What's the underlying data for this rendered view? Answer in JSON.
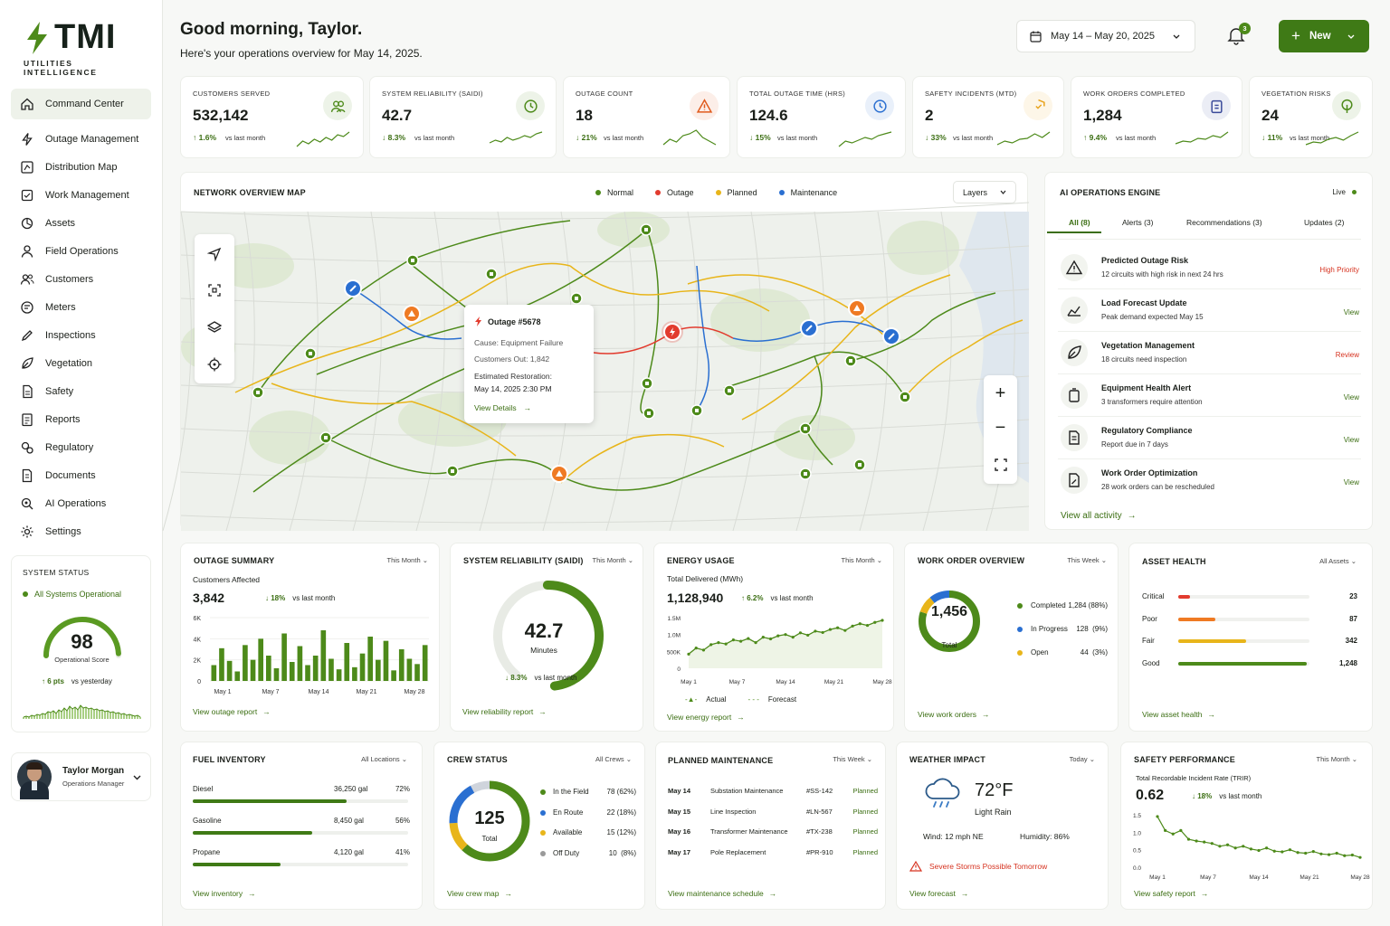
{
  "brand": {
    "name": "TMI",
    "tagline": "UTILITIES INTELLIGENCE"
  },
  "sidebar": {
    "items": [
      {
        "label": "Command Center",
        "icon": "home-icon"
      },
      {
        "label": "Outage Management",
        "icon": "zap-icon"
      },
      {
        "label": "Distribution Map",
        "icon": "map-icon"
      },
      {
        "label": "Work Management",
        "icon": "clipboard-icon"
      },
      {
        "label": "Assets",
        "icon": "assets-icon"
      },
      {
        "label": "Field Operations",
        "icon": "user-icon"
      },
      {
        "label": "Customers",
        "icon": "users-icon"
      },
      {
        "label": "Meters",
        "icon": "meter-icon"
      },
      {
        "label": "Inspections",
        "icon": "pen-icon"
      },
      {
        "label": "Vegetation",
        "icon": "leaf-icon"
      },
      {
        "label": "Safety",
        "icon": "doc-icon"
      },
      {
        "label": "Reports",
        "icon": "report-icon"
      },
      {
        "label": "Regulatory",
        "icon": "regulatory-icon"
      },
      {
        "label": "Documents",
        "icon": "document-icon"
      },
      {
        "label": "AI Operations",
        "icon": "ai-icon"
      },
      {
        "label": "Settings",
        "icon": "gear-icon"
      }
    ],
    "system_status": {
      "title": "SYSTEM STATUS",
      "state": "All Systems Operational",
      "score": "98",
      "score_label": "Operational Score",
      "change": "6 pts",
      "change_label": "vs yesterday"
    },
    "user": {
      "name": "Taylor Morgan",
      "role": "Operations Manager"
    }
  },
  "header": {
    "greeting": "Good morning, Taylor.",
    "subtitle": "Here's your operations overview for May 14, 2025.",
    "date_range": "May 14 – May 20, 2025",
    "notifications": "3",
    "new_button": "New"
  },
  "kpis": [
    {
      "label": "CUSTOMERS SERVED",
      "value": "532,142",
      "change": "1.6%",
      "dir": "up",
      "vs": "vs last month",
      "icon": "users-icon",
      "icon_color": "#4d8a1a"
    },
    {
      "label": "SYSTEM RELIABILITY (SAIDI)",
      "value": "42.7",
      "change": "8.3%",
      "dir": "down",
      "vs": "vs last month",
      "icon": "clock-icon",
      "icon_color": "#4d8a1a"
    },
    {
      "label": "OUTAGE COUNT",
      "value": "18",
      "change": "21%",
      "dir": "down",
      "vs": "vs last month",
      "icon": "warning-icon",
      "icon_color": "#e05a1c"
    },
    {
      "label": "TOTAL OUTAGE TIME (HRS)",
      "value": "124.6",
      "change": "15%",
      "dir": "down",
      "vs": "vs last month",
      "icon": "clock-icon",
      "icon_color": "#2a6fd1"
    },
    {
      "label": "SAFETY INCIDENTS (MTD)",
      "value": "2",
      "change": "33%",
      "dir": "down",
      "vs": "vs last month",
      "icon": "shield-icon",
      "icon_color": "#e8a21a"
    },
    {
      "label": "WORK ORDERS COMPLETED",
      "value": "1,284",
      "change": "9.4%",
      "dir": "up",
      "vs": "vs last month",
      "icon": "clipboard-icon",
      "icon_color": "#3a4a9a"
    },
    {
      "label": "VEGETATION RISKS",
      "value": "24",
      "change": "11%",
      "dir": "down",
      "vs": "vs last month",
      "icon": "tree-icon",
      "icon_color": "#4d8a1a"
    }
  ],
  "map": {
    "title": "NETWORK OVERVIEW MAP",
    "legend": [
      {
        "label": "Normal",
        "color": "#4d8a1a"
      },
      {
        "label": "Outage",
        "color": "#e23b2e"
      },
      {
        "label": "Planned",
        "color": "#e8b51a"
      },
      {
        "label": "Maintenance",
        "color": "#2a6fd1"
      }
    ],
    "layers_label": "Layers",
    "popup": {
      "title": "Outage #5678",
      "cause": "Cause: Equipment Failure",
      "customers": "Customers Out: 1,842",
      "restore_label": "Estimated Restoration:",
      "restore_time": "May 14, 2025 2:30 PM",
      "link": "View Details"
    }
  },
  "ai_engine": {
    "title": "AI OPERATIONS ENGINE",
    "live": "Live",
    "tabs": [
      "All (8)",
      "Alerts (3)",
      "Recommendations (3)",
      "Updates (2)"
    ],
    "items": [
      {
        "title": "Predicted Outage Risk",
        "desc": "12 circuits with high risk in next 24 hrs",
        "action": "High Priority",
        "color": "#d6321f",
        "icon": "warning-icon"
      },
      {
        "title": "Load Forecast Update",
        "desc": "Peak demand expected May 15",
        "action": "View",
        "color": "#3b6e12",
        "icon": "chart-icon"
      },
      {
        "title": "Vegetation Management",
        "desc": "18 circuits need inspection",
        "action": "Review",
        "color": "#d6321f",
        "icon": "leaf-icon"
      },
      {
        "title": "Equipment Health Alert",
        "desc": "3 transformers require attention",
        "action": "View",
        "color": "#3b6e12",
        "icon": "battery-icon"
      },
      {
        "title": "Regulatory Compliance",
        "desc": "Report due in 7 days",
        "action": "View",
        "color": "#3b6e12",
        "icon": "document-icon"
      },
      {
        "title": "Work Order Optimization",
        "desc": "28 work orders can be rescheduled",
        "action": "View",
        "color": "#3b6e12",
        "icon": "doc-edit-icon"
      }
    ],
    "link": "View all activity"
  },
  "outage_summary": {
    "title": "OUTAGE SUMMARY",
    "period": "This Month",
    "label": "Customers Affected",
    "value": "3,842",
    "change": "18%",
    "vs": "vs last month",
    "link": "View outage report"
  },
  "reliability": {
    "title": "SYSTEM RELIABILITY (SAIDI)",
    "period": "This Month",
    "value": "42.7",
    "unit": "Minutes",
    "gauge_fraction": 0.62,
    "change": "8.3%",
    "vs": "vs last month",
    "link": "View reliability report"
  },
  "energy": {
    "title": "ENERGY USAGE",
    "period": "This Month",
    "label": "Total Delivered (MWh)",
    "value": "1,128,940",
    "change": "6.2%",
    "vs": "vs last month",
    "legend_actual": "Actual",
    "legend_forecast": "Forecast",
    "link": "View energy report"
  },
  "work_orders": {
    "title": "WORK ORDER OVERVIEW",
    "period": "This Week",
    "total": "1,456",
    "total_label": "Total",
    "rows": [
      {
        "label": "Completed",
        "value": "1,284 (88%)",
        "color": "#4d8a1a"
      },
      {
        "label": "In Progress",
        "value": "128  (9%)",
        "color": "#2a6fd1"
      },
      {
        "label": "Open",
        "value": "44  (3%)",
        "color": "#e8b51a"
      }
    ],
    "link": "View work orders"
  },
  "asset_health": {
    "title": "ASSET HEALTH",
    "period": "All Assets",
    "rows": [
      {
        "label": "Critical",
        "value": "23",
        "color": "#e23b2e",
        "fraction": 0.09
      },
      {
        "label": "Poor",
        "value": "87",
        "color": "#ef7a23",
        "fraction": 0.28
      },
      {
        "label": "Fair",
        "value": "342",
        "color": "#e8b51a",
        "fraction": 0.52
      },
      {
        "label": "Good",
        "value": "1,248",
        "color": "#4d8a1a",
        "fraction": 0.98
      }
    ],
    "link": "View asset health"
  },
  "fuel": {
    "title": "FUEL INVENTORY",
    "period": "All Locations",
    "rows": [
      {
        "label": "Diesel",
        "amount": "36,250 gal",
        "pct": "72%",
        "fraction": 0.72
      },
      {
        "label": "Gasoline",
        "amount": "8,450 gal",
        "pct": "56%",
        "fraction": 0.56
      },
      {
        "label": "Propane",
        "amount": "4,120 gal",
        "pct": "41%",
        "fraction": 0.41
      }
    ],
    "link": "View inventory"
  },
  "crew": {
    "title": "CREW STATUS",
    "period": "All Crews",
    "total": "125",
    "total_label": "Total",
    "rows": [
      {
        "label": "In the Field",
        "value": "78 (62%)",
        "color": "#4d8a1a"
      },
      {
        "label": "En Route",
        "value": "22 (18%)",
        "color": "#2a6fd1"
      },
      {
        "label": "Available",
        "value": "15 (12%)",
        "color": "#e8b51a"
      },
      {
        "label": "Off Duty",
        "value": "10  (8%)",
        "color": "#9a9a9a"
      }
    ],
    "link": "View crew map"
  },
  "maintenance": {
    "title": "PLANNED MAINTENANCE",
    "period": "This Week",
    "rows": [
      {
        "date": "May 14",
        "task": "Substation Maintenance",
        "id": "#SS-142",
        "status": "Planned"
      },
      {
        "date": "May 15",
        "task": "Line Inspection",
        "id": "#LN-567",
        "status": "Planned"
      },
      {
        "date": "May 16",
        "task": "Transformer Maintenance",
        "id": "#TX-238",
        "status": "Planned"
      },
      {
        "date": "May 17",
        "task": "Pole Replacement",
        "id": "#PR-910",
        "status": "Planned"
      }
    ],
    "link": "View maintenance schedule"
  },
  "weather": {
    "title": "WEATHER IMPACT",
    "period": "Today",
    "temp": "72°F",
    "condition": "Light Rain",
    "wind": "Wind:  12 mph NE",
    "humidity": "Humidity:  86%",
    "alert": "Severe Storms Possible Tomorrow",
    "link": "View forecast"
  },
  "safety": {
    "title": "SAFETY PERFORMANCE",
    "period": "This Month",
    "label": "Total Recordable Incident Rate (TRIR)",
    "value": "0.62",
    "change": "18%",
    "vs": "vs last month",
    "link": "View safety report"
  },
  "chart_data": [
    {
      "type": "bar",
      "title": "Customers Affected",
      "categories": [
        "May 1",
        "May 2",
        "May 3",
        "May 4",
        "May 5",
        "May 6",
        "May 7",
        "May 8",
        "May 9",
        "May 10",
        "May 11",
        "May 12",
        "May 13",
        "May 14",
        "May 15",
        "May 16",
        "May 17",
        "May 18",
        "May 19",
        "May 20",
        "May 21",
        "May 22",
        "May 23",
        "May 24",
        "May 25",
        "May 26",
        "May 27",
        "May 28"
      ],
      "values": [
        1500,
        3100,
        1900,
        900,
        3400,
        2000,
        4000,
        2400,
        1200,
        4500,
        1800,
        3300,
        1500,
        2400,
        4800,
        2100,
        1100,
        3600,
        1300,
        2600,
        4200,
        2000,
        3800,
        1000,
        3000,
        2100,
        1600,
        3400
      ],
      "x_ticks": [
        "May 1",
        "May 7",
        "May 14",
        "May 21",
        "May 28"
      ],
      "y_ticks": [
        "0",
        "2K",
        "4K",
        "6K"
      ],
      "ylim": [
        0,
        6000
      ]
    },
    {
      "type": "line",
      "title": "Total Delivered (MWh)",
      "x_ticks": [
        "May 1",
        "May 7",
        "May 14",
        "May 21",
        "May 28"
      ],
      "y_ticks": [
        "0",
        "500K",
        "1.0M",
        "1.5M"
      ],
      "ylim": [
        0,
        1500000
      ],
      "series": [
        {
          "name": "Actual",
          "values": [
            420000,
            600000,
            540000,
            700000,
            760000,
            720000,
            840000,
            800000,
            880000,
            760000,
            920000,
            870000,
            960000,
            1000000,
            920000,
            1050000,
            980000,
            1100000,
            1060000,
            1150000,
            1200000,
            1120000,
            1250000,
            1320000,
            1270000,
            1360000,
            1420000
          ]
        }
      ]
    },
    {
      "type": "line",
      "title": "Total Recordable Incident Rate (TRIR)",
      "x_ticks": [
        "May 1",
        "May 7",
        "May 14",
        "May 21",
        "May 28"
      ],
      "y_ticks": [
        "0.0",
        "0.5",
        "1.0",
        "1.5"
      ],
      "ylim": [
        0,
        1.5
      ],
      "series": [
        {
          "name": "",
          "values": [
            1.45,
            1.05,
            0.95,
            1.05,
            0.8,
            0.75,
            0.72,
            0.68,
            0.6,
            0.64,
            0.55,
            0.6,
            0.52,
            0.48,
            0.55,
            0.46,
            0.44,
            0.5,
            0.42,
            0.4,
            0.45,
            0.38,
            0.36,
            0.4,
            0.33,
            0.35,
            0.28
          ]
        }
      ]
    }
  ]
}
